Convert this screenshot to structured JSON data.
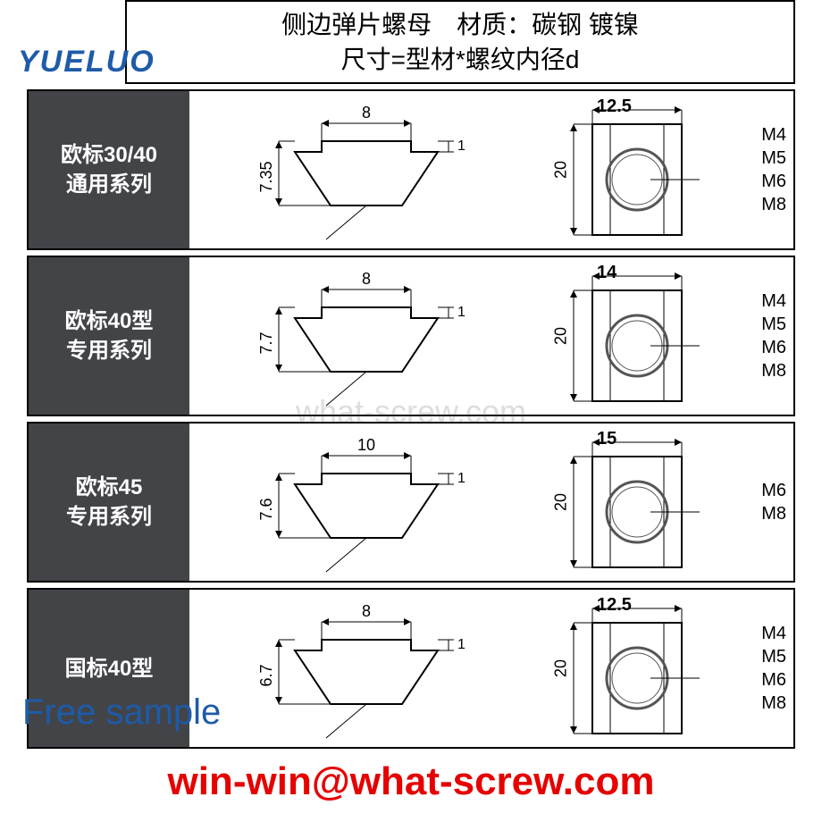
{
  "header": {
    "line1": "侧边弹片螺母　材质：碳钢 镀镍",
    "line2": "尺寸=型材*螺纹内径d"
  },
  "logo": "YUELUO",
  "watermark": "what-screw.com",
  "free_sample": "Free sample",
  "email": "win-win@what-screw.com",
  "colors": {
    "label_bg": "#424448",
    "label_text": "#ffffff",
    "border": "#000000",
    "logo": "#1e5ba8",
    "free_sample": "#1e5ba8",
    "email": "#e60000",
    "circle_stroke": "#555555",
    "line": "#000000"
  },
  "rows": [
    {
      "label_line1": "欧标30/40",
      "label_line2": "通用系列",
      "profile": {
        "top_width": "8",
        "height": "7.35",
        "flange": "1"
      },
      "plan": {
        "width": "12.5",
        "height": "20",
        "threads": [
          "M4",
          "M5",
          "M6",
          "M8"
        ]
      }
    },
    {
      "label_line1": "欧标40型",
      "label_line2": "专用系列",
      "profile": {
        "top_width": "8",
        "height": "7.7",
        "flange": "1"
      },
      "plan": {
        "width": "14",
        "height": "20",
        "threads": [
          "M4",
          "M5",
          "M6",
          "M8"
        ]
      }
    },
    {
      "label_line1": "欧标45",
      "label_line2": "专用系列",
      "profile": {
        "top_width": "10",
        "height": "7.6",
        "flange": "1"
      },
      "plan": {
        "width": "15",
        "height": "20",
        "threads": [
          "M6",
          "M8"
        ]
      }
    },
    {
      "label_line1": "国标40型",
      "label_line2": "",
      "profile": {
        "top_width": "8",
        "height": "6.7",
        "flange": "1"
      },
      "plan": {
        "width": "12.5",
        "height": "20",
        "threads": [
          "M4",
          "M5",
          "M6",
          "M8"
        ]
      }
    }
  ]
}
